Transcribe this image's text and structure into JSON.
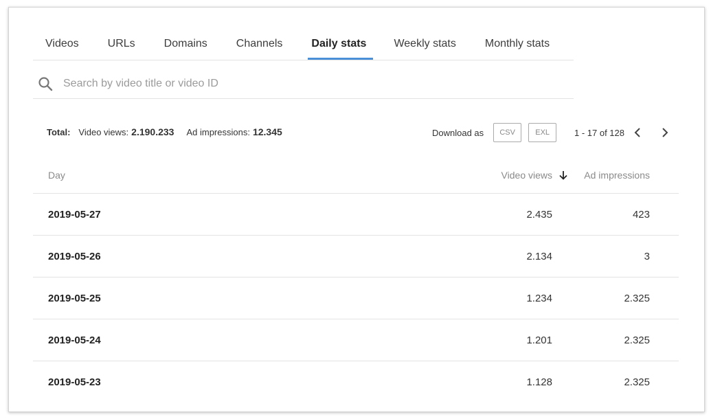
{
  "tabs": [
    {
      "label": "Videos",
      "active": false
    },
    {
      "label": "URLs",
      "active": false
    },
    {
      "label": "Domains",
      "active": false
    },
    {
      "label": "Channels",
      "active": false
    },
    {
      "label": "Daily stats",
      "active": true
    },
    {
      "label": "Weekly stats",
      "active": false
    },
    {
      "label": "Monthly stats",
      "active": false
    }
  ],
  "search": {
    "placeholder": "Search by video title or video ID",
    "icon": "search-icon"
  },
  "summary": {
    "total_label": "Total:",
    "video_views_label": "Video views:",
    "video_views_value": "2.190.233",
    "ad_impressions_label": "Ad impressions:",
    "ad_impressions_value": "12.345"
  },
  "download": {
    "label": "Download as",
    "csv": "CSV",
    "exl": "EXL"
  },
  "pagination": {
    "text": "1 - 17 of 128",
    "prev_icon": "chevron-left-icon",
    "next_icon": "chevron-right-icon"
  },
  "table": {
    "headers": {
      "day": "Day",
      "video_views": "Video views",
      "ad_impressions": "Ad impressions"
    },
    "sort_icon": "arrow-down-icon",
    "rows": [
      {
        "day": "2019-05-27",
        "video_views": "2.435",
        "ad_impressions": "423"
      },
      {
        "day": "2019-05-26",
        "video_views": "2.134",
        "ad_impressions": "3"
      },
      {
        "day": "2019-05-25",
        "video_views": "1.234",
        "ad_impressions": "2.325"
      },
      {
        "day": "2019-05-24",
        "video_views": "1.201",
        "ad_impressions": "2.325"
      },
      {
        "day": "2019-05-23",
        "video_views": "1.128",
        "ad_impressions": "2.325"
      }
    ]
  },
  "colors": {
    "accent": "#4a90d9",
    "border": "#e3e3e3",
    "muted_text": "#8a8a8a"
  }
}
